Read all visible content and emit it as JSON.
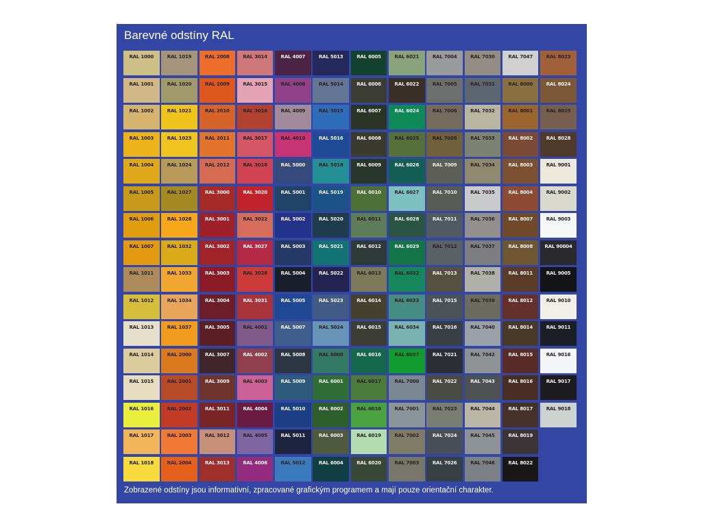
{
  "title": "Barevné odstíny RAL",
  "footer": "Zobrazené odstíny jsou informativní, zpracované grafickým programem a mají pouze orientační charakter.",
  "colors": {
    "background": "#3446a4",
    "page": "#ffffff"
  },
  "columns": [
    [
      [
        "RAL 1000",
        "#cdbf86"
      ],
      [
        "RAL 1001",
        "#d2b886"
      ],
      [
        "RAL 1002",
        "#d4b46f"
      ],
      [
        "RAL 1003",
        "#ecb31a"
      ],
      [
        "RAL 1004",
        "#e0a91b"
      ],
      [
        "RAL 1005",
        "#c99a1a"
      ],
      [
        "RAL 1006",
        "#e29c0f"
      ],
      [
        "RAL 1007",
        "#e39a12"
      ],
      [
        "RAL 1011",
        "#ad8a5b"
      ],
      [
        "RAL 1012",
        "#d6bd3c"
      ],
      [
        "RAL 1013",
        "#e6dfcc"
      ],
      [
        "RAL 1014",
        "#ddcc9e"
      ],
      [
        "RAL 1015",
        "#e6dcbf"
      ],
      [
        "RAL 1016",
        "#eaef3e"
      ],
      [
        "RAL 1017",
        "#f1b55a"
      ],
      [
        "RAL 1018",
        "#f7da3c"
      ]
    ],
    [
      [
        "RAL 1019",
        "#a4957c"
      ],
      [
        "RAL 1020",
        "#a09a6c"
      ],
      [
        "RAL 1021",
        "#f0c41b"
      ],
      [
        "RAL 1023",
        "#f0c51f"
      ],
      [
        "RAL 1024",
        "#b89a5a"
      ],
      [
        "RAL 1027",
        "#a58a23"
      ],
      [
        "RAL 1028",
        "#f6a81a"
      ],
      [
        "RAL 1032",
        "#dcab1c"
      ],
      [
        "RAL 1033",
        "#f2a830"
      ],
      [
        "RAL 1034",
        "#eaa55d"
      ],
      [
        "RAL 1037",
        "#f09b1d"
      ],
      [
        "RAL 2000",
        "#dc7a20"
      ],
      [
        "RAL 2001",
        "#b84c28"
      ],
      [
        "RAL 2002",
        "#c23b26"
      ],
      [
        "RAL 2003",
        "#f07a35"
      ],
      [
        "RAL 2004",
        "#e5601b"
      ]
    ],
    [
      [
        "RAL 2008",
        "#ed6e2b"
      ],
      [
        "RAL 2009",
        "#de581e"
      ],
      [
        "RAL 2010",
        "#d5632a"
      ],
      [
        "RAL 2011",
        "#e3742b"
      ],
      [
        "RAL 2012",
        "#d66b54"
      ],
      [
        "RAL 3000",
        "#a62a26"
      ],
      [
        "RAL 3001",
        "#9e2129"
      ],
      [
        "RAL 3002",
        "#9f2328"
      ],
      [
        "RAL 3003",
        "#8a1a26"
      ],
      [
        "RAL 3004",
        "#6d1d27"
      ],
      [
        "RAL 3005",
        "#5a1e24"
      ],
      [
        "RAL 3007",
        "#3f2429"
      ],
      [
        "RAL 3009",
        "#6e332b"
      ],
      [
        "RAL 3011",
        "#7b2426"
      ],
      [
        "RAL 3012",
        "#c58f78"
      ],
      [
        "RAL 3013",
        "#9e302b"
      ]
    ],
    [
      [
        "RAL 3014",
        "#d0777a"
      ],
      [
        "RAL 3015",
        "#e4a3b4"
      ],
      [
        "RAL 3016",
        "#b14232"
      ],
      [
        "RAL 3017",
        "#d35766"
      ],
      [
        "RAL 3018",
        "#cf4353"
      ],
      [
        "RAL 3020",
        "#c1232b"
      ],
      [
        "RAL 3022",
        "#d56c5c"
      ],
      [
        "RAL 3027",
        "#b42a45"
      ],
      [
        "RAL 3028",
        "#cd3a3a"
      ],
      [
        "RAL 3031",
        "#a8333a"
      ],
      [
        "RAL 4001",
        "#805a8a"
      ],
      [
        "RAL 4002",
        "#913f4e"
      ],
      [
        "RAL 4003",
        "#cc6198"
      ],
      [
        "RAL 4004",
        "#6b1a41"
      ],
      [
        "RAL 4005",
        "#7e66a4"
      ],
      [
        "RAL 4006",
        "#942c7e"
      ]
    ],
    [
      [
        "RAL 4007",
        "#4a2345"
      ],
      [
        "RAL 4008",
        "#8f4287"
      ],
      [
        "RAL 4009",
        "#a08a9b"
      ],
      [
        "RAL 4010",
        "#c73476"
      ],
      [
        "RAL 5000",
        "#35497a"
      ],
      [
        "RAL 5001",
        "#1f4468"
      ],
      [
        "RAL 5002",
        "#24338a"
      ],
      [
        "RAL 5003",
        "#243966"
      ],
      [
        "RAL 5004",
        "#1a1f2c"
      ],
      [
        "RAL 5005",
        "#1f4794"
      ],
      [
        "RAL 5007",
        "#3f5e8e"
      ],
      [
        "RAL 5008",
        "#2c3542"
      ],
      [
        "RAL 5009",
        "#2e5a7b"
      ],
      [
        "RAL 5010",
        "#1b3d84"
      ],
      [
        "RAL 5011",
        "#1d2440"
      ],
      [
        "RAL 5012",
        "#3b7bbd"
      ]
    ],
    [
      [
        "RAL 5013",
        "#23295a"
      ],
      [
        "RAL 5014",
        "#637594"
      ],
      [
        "RAL 5015",
        "#2f6db8"
      ],
      [
        "RAL 5016",
        "#1e4a96"
      ],
      [
        "RAL 5018",
        "#248f95"
      ],
      [
        "RAL 5019",
        "#1b5287"
      ],
      [
        "RAL 5020",
        "#1e3b4b"
      ],
      [
        "RAL 5021",
        "#137272"
      ],
      [
        "RAL 5022",
        "#222350"
      ],
      [
        "RAL 5023",
        "#415a86"
      ],
      [
        "RAL 5024",
        "#6693b6"
      ],
      [
        "RAL 6000",
        "#357a64"
      ],
      [
        "RAL 6001",
        "#2f6e37"
      ],
      [
        "RAL 6002",
        "#2e5d2c"
      ],
      [
        "RAL 6003",
        "#4e5a3e"
      ],
      [
        "RAL 6004",
        "#113f43"
      ]
    ],
    [
      [
        "RAL 6005",
        "#134230"
      ],
      [
        "RAL 6006",
        "#3b3c34"
      ],
      [
        "RAL 6007",
        "#2b3527"
      ],
      [
        "RAL 6008",
        "#3a3a2e"
      ],
      [
        "RAL 6009",
        "#29362c"
      ],
      [
        "RAL 6010",
        "#4d7036"
      ],
      [
        "RAL 6011",
        "#5d7d58"
      ],
      [
        "RAL 6012",
        "#2f3a38"
      ],
      [
        "RAL 6013",
        "#7d7a5b"
      ],
      [
        "RAL 6014",
        "#46412f"
      ],
      [
        "RAL 6015",
        "#3c3d35"
      ],
      [
        "RAL 6016",
        "#13684c"
      ],
      [
        "RAL 6017",
        "#4b7a3a"
      ],
      [
        "RAL 6018",
        "#4aa13f"
      ],
      [
        "RAL 6019",
        "#b4dcb1"
      ],
      [
        "RAL 6020",
        "#384836"
      ]
    ],
    [
      [
        "RAL 6021",
        "#89a37c"
      ],
      [
        "RAL 6022",
        "#3a3027"
      ],
      [
        "RAL 6024",
        "#0f8858"
      ],
      [
        "RAL 6025",
        "#56703b"
      ],
      [
        "RAL 6026",
        "#135e55"
      ],
      [
        "RAL 6027",
        "#7ebfc2"
      ],
      [
        "RAL 6028",
        "#2c5445"
      ],
      [
        "RAL 6029",
        "#137447"
      ],
      [
        "RAL 6032",
        "#16875c"
      ],
      [
        "RAL 6033",
        "#458d83"
      ],
      [
        "RAL 6034",
        "#7ab2b2"
      ],
      [
        "RAL 6037",
        "#109b2f"
      ],
      [
        "RAL 7000",
        "#7a8894"
      ],
      [
        "RAL 7001",
        "#8a939a"
      ],
      [
        "RAL 7002",
        "#7e7b67"
      ],
      [
        "RAL 7003",
        "#76776a"
      ]
    ],
    [
      [
        "RAL 7004",
        "#9a9b9d"
      ],
      [
        "RAL 7005",
        "#6b6f6d"
      ],
      [
        "RAL 7006",
        "#756b5d"
      ],
      [
        "RAL 7008",
        "#6f5f3a"
      ],
      [
        "RAL 7009",
        "#5b5f57"
      ],
      [
        "RAL 7010",
        "#595c56"
      ],
      [
        "RAL 7011",
        "#515a61"
      ],
      [
        "RAL 7012",
        "#5a6166"
      ],
      [
        "RAL 7013",
        "#56503f"
      ],
      [
        "RAL 7015",
        "#4d5158"
      ],
      [
        "RAL 7016",
        "#393e44"
      ],
      [
        "RAL 7021",
        "#2b2e32"
      ],
      [
        "RAL 7022",
        "#4a4a44"
      ],
      [
        "RAL 7023",
        "#7a7d73"
      ],
      [
        "RAL 7024",
        "#494f56"
      ],
      [
        "RAL 7026",
        "#363f44"
      ]
    ],
    [
      [
        "RAL 7030",
        "#928e85"
      ],
      [
        "RAL 7031",
        "#5d6670"
      ],
      [
        "RAL 7032",
        "#b8b6a1"
      ],
      [
        "RAL 7033",
        "#7c8374"
      ],
      [
        "RAL 7034",
        "#8f8970"
      ],
      [
        "RAL 7035",
        "#c8cacb"
      ],
      [
        "RAL 7036",
        "#928f8f"
      ],
      [
        "RAL 7037",
        "#7c7e80"
      ],
      [
        "RAL 7038",
        "#afb1aa"
      ],
      [
        "RAL 7039",
        "#6d6a60"
      ],
      [
        "RAL 7040",
        "#9aa0a7"
      ],
      [
        "RAL 7042",
        "#8e9295"
      ],
      [
        "RAL 7043",
        "#4e5153"
      ],
      [
        "RAL 7044",
        "#bab7a9"
      ],
      [
        "RAL 7045",
        "#8d9297"
      ],
      [
        "RAL 7046",
        "#7c8187"
      ]
    ],
    [
      [
        "RAL 7047",
        "#d0d0d0"
      ],
      [
        "RAL 8000",
        "#8a7040"
      ],
      [
        "RAL 8001",
        "#9b6530"
      ],
      [
        "RAL 8002",
        "#7a4a36"
      ],
      [
        "RAL 8003",
        "#7b5131"
      ],
      [
        "RAL 8004",
        "#8d4b33"
      ],
      [
        "RAL 8007",
        "#6f4a2a"
      ],
      [
        "RAL 8008",
        "#6f5530"
      ],
      [
        "RAL 8011",
        "#5a3b28"
      ],
      [
        "RAL 8012",
        "#65302a"
      ],
      [
        "RAL 8014",
        "#4a3828"
      ],
      [
        "RAL 8015",
        "#5a2c28"
      ],
      [
        "RAL 8016",
        "#4a2d22"
      ],
      [
        "RAL 8017",
        "#45302a"
      ],
      [
        "RAL 8019",
        "#3c3435"
      ],
      [
        "RAL 8022",
        "#1a1718"
      ]
    ],
    [
      [
        "RAL 8023",
        "#a0603a"
      ],
      [
        "RAL 8024",
        "#7a5838"
      ],
      [
        "RAL 8025",
        "#765f4e"
      ],
      [
        "RAL 8028",
        "#4e3b2b"
      ],
      [
        "RAL 9001",
        "#ede8dc"
      ],
      [
        "RAL 9002",
        "#dad9cd"
      ],
      [
        "RAL 9003",
        "#f5f6f6"
      ],
      [
        "RAL 90004",
        "#2a2a2e"
      ],
      [
        "RAL 9005",
        "#131417"
      ],
      [
        "RAL 9010",
        "#f1efe8"
      ],
      [
        "RAL 9011",
        "#1d1f26"
      ],
      [
        "RAL 9016",
        "#f3f5f6"
      ],
      [
        "RAL 9017",
        "#1c1b1f"
      ],
      [
        "RAL 9018",
        "#ced3d2"
      ]
    ]
  ]
}
